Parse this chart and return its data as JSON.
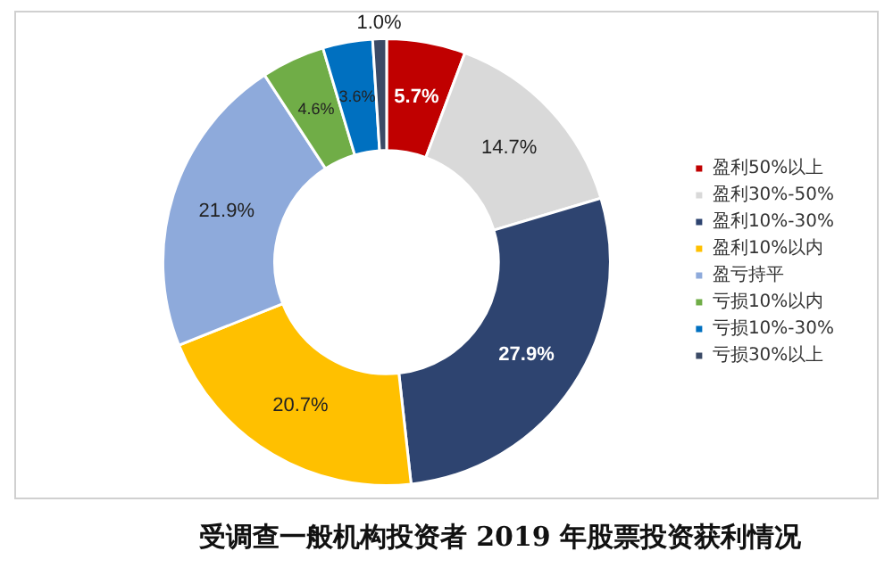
{
  "chart_data": {
    "type": "donut",
    "title": "受调查一般机构投资者 2019 年股票投资获利情况",
    "categories": [
      "盈利50%以上",
      "盈利30%-50%",
      "盈利10%-30%",
      "盈利10%以内",
      "盈亏持平",
      "亏损10%以内",
      "亏损10%-30%",
      "亏损30%以上"
    ],
    "values": [
      5.7,
      14.7,
      27.9,
      20.7,
      21.9,
      4.6,
      3.6,
      1.0
    ],
    "colors": [
      "#c00000",
      "#d9d9d9",
      "#2e4470",
      "#ffc000",
      "#8eaadb",
      "#70ad47",
      "#0070c0",
      "#3b4a66"
    ],
    "value_labels": [
      "5.7%",
      "14.7%",
      "27.9%",
      "20.7%",
      "21.9%",
      "4.6%",
      "3.6%",
      "1.0%"
    ],
    "legend": "right"
  }
}
